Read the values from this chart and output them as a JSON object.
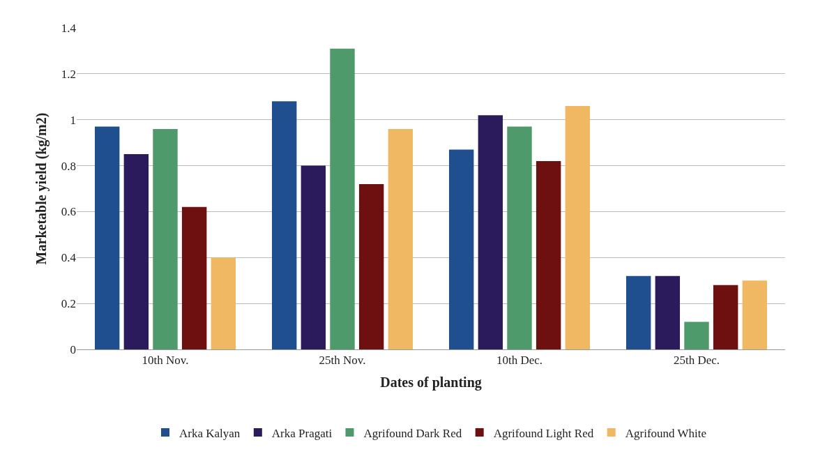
{
  "chart_data": {
    "type": "bar",
    "xlabel": "Dates of planting",
    "ylabel": "Marketable yield (kg/m2)",
    "categories": [
      "10th Nov.",
      "25th Nov.",
      "10th Dec.",
      "25th Dec."
    ],
    "series": [
      {
        "name": "Arka Kalyan",
        "color": "#1f4f8f",
        "values": [
          0.97,
          1.08,
          0.87,
          0.32
        ]
      },
      {
        "name": "Arka Pragati",
        "color": "#2b1a5c",
        "values": [
          0.85,
          0.8,
          1.02,
          0.32
        ]
      },
      {
        "name": "Agrifound Dark Red",
        "color": "#4f9a6b",
        "values": [
          0.96,
          1.31,
          0.97,
          0.12
        ]
      },
      {
        "name": "Agrifound Light Red",
        "color": "#6e1010",
        "values": [
          0.62,
          0.72,
          0.82,
          0.28
        ]
      },
      {
        "name": "Agrifound White",
        "color": "#f0b862",
        "values": [
          0.4,
          0.96,
          1.06,
          0.3
        ]
      }
    ],
    "ylim": [
      0,
      1.4
    ],
    "yticks": [
      0,
      {
        "value": 0.2,
        "label": "0.2"
      },
      {
        "value": 0.4,
        "label": "0.4"
      },
      {
        "value": 0.6,
        "label": "0.6"
      },
      {
        "value": 0.8,
        "label": "0.8"
      },
      1,
      {
        "value": 1.2,
        "label": "1.2"
      },
      {
        "value": 1.4,
        "label": "1.4"
      }
    ],
    "grid": "y",
    "legend": "bottom"
  }
}
